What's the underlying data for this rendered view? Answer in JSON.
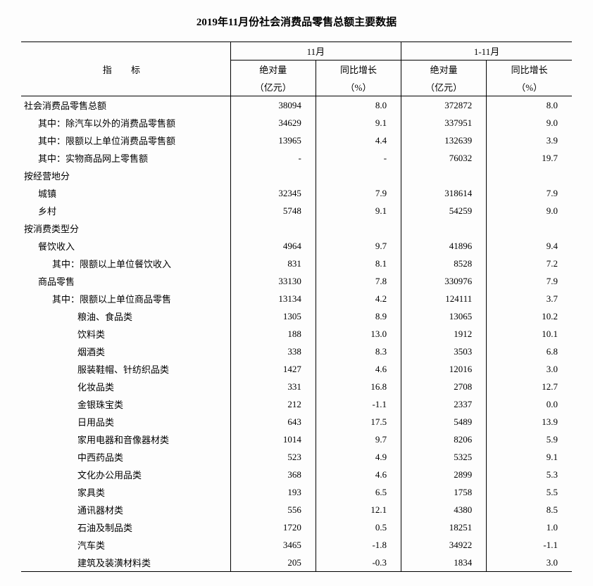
{
  "title": "2019年11月份社会消费品零售总额主要数据",
  "headers": {
    "indicator": "指 标",
    "period1": "11月",
    "period2": "1-11月",
    "abs_label_l1": "绝对量",
    "abs_label_l2": "（亿元）",
    "yoy_label_l1": "同比增长",
    "yoy_label_l2": "（%）"
  },
  "rows": [
    {
      "indent": 0,
      "label": "社会消费品零售总额",
      "v1": "38094",
      "v2": "8.0",
      "v3": "372872",
      "v4": "8.0"
    },
    {
      "indent": 1,
      "label": "其中：除汽车以外的消费品零售额",
      "v1": "34629",
      "v2": "9.1",
      "v3": "337951",
      "v4": "9.0"
    },
    {
      "indent": 1,
      "label": "其中：限额以上单位消费品零售额",
      "v1": "13965",
      "v2": "4.4",
      "v3": "132639",
      "v4": "3.9"
    },
    {
      "indent": 1,
      "label": "其中：实物商品网上零售额",
      "v1": "-",
      "v2": "-",
      "v3": "76032",
      "v4": "19.7"
    },
    {
      "indent": 0,
      "label": "按经营地分",
      "v1": "",
      "v2": "",
      "v3": "",
      "v4": ""
    },
    {
      "indent": 1,
      "label": "城镇",
      "v1": "32345",
      "v2": "7.9",
      "v3": "318614",
      "v4": "7.9"
    },
    {
      "indent": 1,
      "label": "乡村",
      "v1": "5748",
      "v2": "9.1",
      "v3": "54259",
      "v4": "9.0"
    },
    {
      "indent": 0,
      "label": "按消费类型分",
      "v1": "",
      "v2": "",
      "v3": "",
      "v4": ""
    },
    {
      "indent": 1,
      "label": "餐饮收入",
      "v1": "4964",
      "v2": "9.7",
      "v3": "41896",
      "v4": "9.4"
    },
    {
      "indent": 2,
      "label": "其中：限额以上单位餐饮收入",
      "v1": "831",
      "v2": "8.1",
      "v3": "8528",
      "v4": "7.2"
    },
    {
      "indent": 1,
      "label": "商品零售",
      "v1": "33130",
      "v2": "7.8",
      "v3": "330976",
      "v4": "7.9"
    },
    {
      "indent": 2,
      "label": "其中：限额以上单位商品零售",
      "v1": "13134",
      "v2": "4.2",
      "v3": "124111",
      "v4": "3.7"
    },
    {
      "indent": 3,
      "label": "粮油、食品类",
      "v1": "1305",
      "v2": "8.9",
      "v3": "13065",
      "v4": "10.2"
    },
    {
      "indent": 3,
      "label": "饮料类",
      "v1": "188",
      "v2": "13.0",
      "v3": "1912",
      "v4": "10.1"
    },
    {
      "indent": 3,
      "label": "烟酒类",
      "v1": "338",
      "v2": "8.3",
      "v3": "3503",
      "v4": "6.8"
    },
    {
      "indent": 3,
      "label": "服装鞋帽、针纺织品类",
      "v1": "1427",
      "v2": "4.6",
      "v3": "12016",
      "v4": "3.0"
    },
    {
      "indent": 3,
      "label": "化妆品类",
      "v1": "331",
      "v2": "16.8",
      "v3": "2708",
      "v4": "12.7"
    },
    {
      "indent": 3,
      "label": "金银珠宝类",
      "v1": "212",
      "v2": "-1.1",
      "v3": "2337",
      "v4": "0.0"
    },
    {
      "indent": 3,
      "label": "日用品类",
      "v1": "643",
      "v2": "17.5",
      "v3": "5489",
      "v4": "13.9"
    },
    {
      "indent": 3,
      "label": "家用电器和音像器材类",
      "v1": "1014",
      "v2": "9.7",
      "v3": "8206",
      "v4": "5.9"
    },
    {
      "indent": 3,
      "label": "中西药品类",
      "v1": "523",
      "v2": "4.9",
      "v3": "5325",
      "v4": "9.1"
    },
    {
      "indent": 3,
      "label": "文化办公用品类",
      "v1": "368",
      "v2": "4.6",
      "v3": "2899",
      "v4": "5.3"
    },
    {
      "indent": 3,
      "label": "家具类",
      "v1": "193",
      "v2": "6.5",
      "v3": "1758",
      "v4": "5.5"
    },
    {
      "indent": 3,
      "label": "通讯器材类",
      "v1": "556",
      "v2": "12.1",
      "v3": "4380",
      "v4": "8.5"
    },
    {
      "indent": 3,
      "label": "石油及制品类",
      "v1": "1720",
      "v2": "0.5",
      "v3": "18251",
      "v4": "1.0"
    },
    {
      "indent": 3,
      "label": "汽车类",
      "v1": "3465",
      "v2": "-1.8",
      "v3": "34922",
      "v4": "-1.1"
    },
    {
      "indent": 3,
      "label": "建筑及装潢材料类",
      "v1": "205",
      "v2": "-0.3",
      "v3": "1834",
      "v4": "3.0"
    }
  ],
  "col_widths": [
    "38%",
    "15.5%",
    "15.5%",
    "15.5%",
    "15.5%"
  ]
}
